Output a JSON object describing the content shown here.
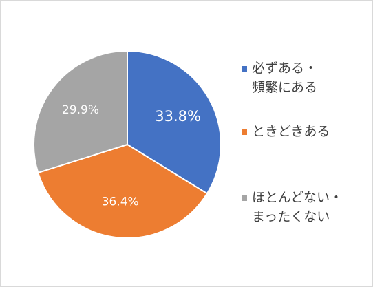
{
  "chart_data": {
    "type": "pie",
    "categories": [
      "必ずある・頻繁にある",
      "ときどきある",
      "ほとんどない・まったくない"
    ],
    "values": [
      33.8,
      36.4,
      29.9
    ],
    "data_labels": [
      "33.8%",
      "36.4%",
      "29.9%"
    ],
    "colors": [
      "#4472c4",
      "#ed7d31",
      "#a5a5a5"
    ],
    "legend": {
      "placement": "right",
      "items": [
        {
          "lines": [
            "必ずある・",
            "頻繁にある"
          ]
        },
        {
          "lines": [
            "ときどきある"
          ]
        },
        {
          "lines": [
            "ほとんどない・",
            "まったくない"
          ]
        }
      ]
    },
    "title": ""
  }
}
